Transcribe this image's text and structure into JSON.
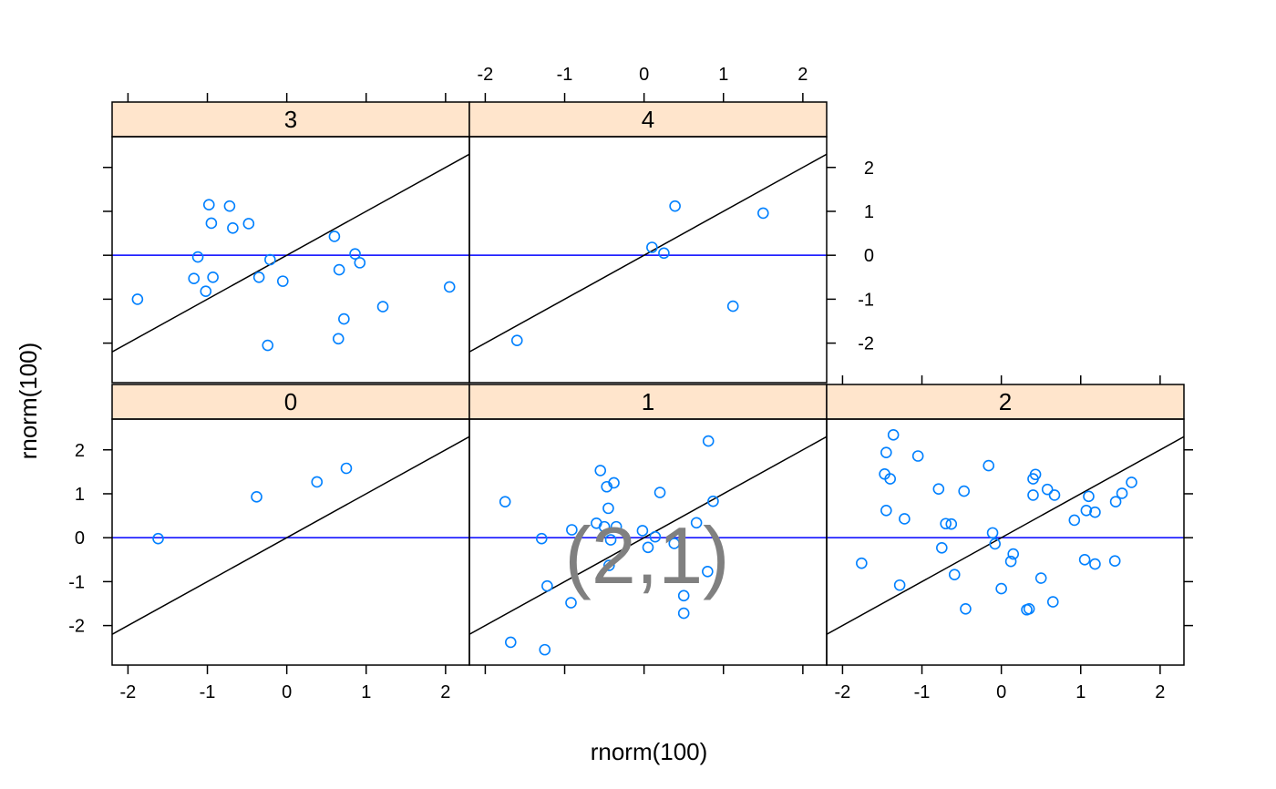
{
  "chart_data": {
    "type": "scatter",
    "layout": "lattice panels, 3 columns x 2 rows, panels ordered left-to-right, bottom-to-top",
    "xlabel": "rnorm(100)",
    "ylabel": "rnorm(100)",
    "xlim": [
      -2.2,
      2.3
    ],
    "ylim": [
      -2.9,
      2.7
    ],
    "x_ticks": [
      -2,
      -1,
      0,
      1,
      2
    ],
    "y_ticks": [
      -2,
      -1,
      0,
      1,
      2
    ],
    "x_tick_labels": [
      "-2",
      "-1",
      "0",
      "1",
      "2"
    ],
    "y_tick_labels": [
      "-2",
      "-1",
      "0",
      "1",
      "2"
    ],
    "reference_lines": {
      "identity_line_color": "#000000",
      "zero_line_color": "#0000ff"
    },
    "point_color": "#0080ff",
    "strip_color": "#ffe5cc",
    "annotation": "(2,1)",
    "panels": [
      {
        "label": "0",
        "row": 1,
        "col": 1,
        "points": [
          [
            -1.62,
            -0.02
          ],
          [
            -0.38,
            0.93
          ],
          [
            0.38,
            1.27
          ],
          [
            0.75,
            1.58
          ]
        ]
      },
      {
        "label": "1",
        "row": 1,
        "col": 2,
        "points": [
          [
            -1.75,
            0.82
          ],
          [
            -1.68,
            -2.38
          ],
          [
            -1.25,
            -2.55
          ],
          [
            -1.29,
            -0.02
          ],
          [
            -1.22,
            -1.1
          ],
          [
            -0.91,
            0.18
          ],
          [
            -0.92,
            -1.48
          ],
          [
            -0.55,
            1.53
          ],
          [
            -0.6,
            0.33
          ],
          [
            -0.47,
            1.16
          ],
          [
            -0.45,
            0.67
          ],
          [
            -0.42,
            -0.05
          ],
          [
            -0.44,
            -0.63
          ],
          [
            -0.38,
            1.25
          ],
          [
            -0.35,
            0.25
          ],
          [
            -0.5,
            0.25
          ],
          [
            -0.02,
            0.16
          ],
          [
            0.05,
            -0.22
          ],
          [
            0.14,
            0.02
          ],
          [
            0.2,
            1.03
          ],
          [
            0.38,
            -0.13
          ],
          [
            0.5,
            -1.32
          ],
          [
            0.5,
            -1.72
          ],
          [
            0.66,
            0.34
          ],
          [
            0.8,
            -0.77
          ],
          [
            0.81,
            2.2
          ],
          [
            0.87,
            0.83
          ]
        ]
      },
      {
        "label": "2",
        "row": 1,
        "col": 3,
        "points": [
          [
            -1.76,
            -0.58
          ],
          [
            -1.47,
            1.45
          ],
          [
            -1.45,
            1.94
          ],
          [
            -1.45,
            0.62
          ],
          [
            -1.4,
            1.34
          ],
          [
            -1.36,
            2.34
          ],
          [
            -1.28,
            -1.08
          ],
          [
            -1.22,
            0.43
          ],
          [
            -1.05,
            1.86
          ],
          [
            -0.79,
            1.11
          ],
          [
            -0.75,
            -0.23
          ],
          [
            -0.7,
            0.32
          ],
          [
            -0.63,
            0.31
          ],
          [
            -0.59,
            -0.84
          ],
          [
            -0.47,
            1.06
          ],
          [
            -0.45,
            -1.62
          ],
          [
            -0.16,
            1.64
          ],
          [
            -0.11,
            0.11
          ],
          [
            -0.08,
            -0.14
          ],
          [
            0.0,
            -1.16
          ],
          [
            0.12,
            -0.54
          ],
          [
            0.15,
            -0.37
          ],
          [
            0.32,
            -1.64
          ],
          [
            0.35,
            -1.62
          ],
          [
            0.4,
            1.34
          ],
          [
            0.4,
            0.97
          ],
          [
            0.43,
            1.44
          ],
          [
            0.5,
            -0.92
          ],
          [
            0.58,
            1.1
          ],
          [
            0.65,
            -1.46
          ],
          [
            0.67,
            0.97
          ],
          [
            0.92,
            0.4
          ],
          [
            1.05,
            -0.5
          ],
          [
            1.07,
            0.62
          ],
          [
            1.1,
            0.94
          ],
          [
            1.18,
            0.58
          ],
          [
            1.18,
            -0.6
          ],
          [
            1.43,
            -0.53
          ],
          [
            1.44,
            0.82
          ],
          [
            1.52,
            1.01
          ],
          [
            1.64,
            1.26
          ]
        ]
      },
      {
        "label": "3",
        "row": 2,
        "col": 1,
        "points": [
          [
            -1.88,
            -1.0
          ],
          [
            -1.17,
            -0.53
          ],
          [
            -1.12,
            -0.04
          ],
          [
            -1.02,
            -0.82
          ],
          [
            -0.98,
            1.15
          ],
          [
            -0.95,
            0.73
          ],
          [
            -0.93,
            -0.5
          ],
          [
            -0.72,
            1.12
          ],
          [
            -0.68,
            0.62
          ],
          [
            -0.48,
            0.72
          ],
          [
            -0.35,
            -0.5
          ],
          [
            -0.24,
            -2.05
          ],
          [
            -0.21,
            -0.1
          ],
          [
            -0.05,
            -0.59
          ],
          [
            0.6,
            0.43
          ],
          [
            0.65,
            -1.9
          ],
          [
            0.66,
            -0.33
          ],
          [
            0.72,
            -1.45
          ],
          [
            0.86,
            0.03
          ],
          [
            0.92,
            -0.17
          ],
          [
            1.21,
            -1.17
          ],
          [
            2.05,
            -0.72
          ]
        ]
      },
      {
        "label": "4",
        "row": 2,
        "col": 2,
        "points": [
          [
            -1.6,
            -1.94
          ],
          [
            0.1,
            0.18
          ],
          [
            0.25,
            0.05
          ],
          [
            0.39,
            1.12
          ],
          [
            1.12,
            -1.16
          ],
          [
            1.5,
            0.96
          ]
        ]
      }
    ]
  }
}
